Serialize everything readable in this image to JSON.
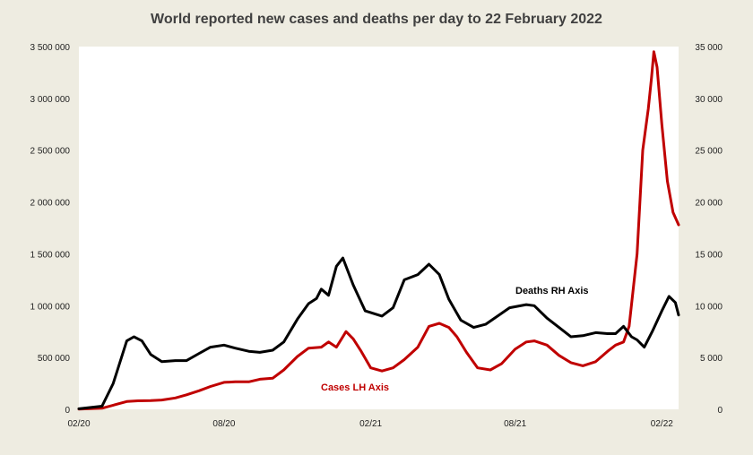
{
  "chart_data": {
    "type": "line",
    "title": "World reported new cases and deaths per day to 22 February 2022",
    "x_ticks": [
      "02/20",
      "08/20",
      "02/21",
      "08/21",
      "02/22"
    ],
    "y_left": {
      "range": [
        0,
        3500000
      ],
      "ticks": [
        "0",
        "500 000",
        "1 000 000",
        "1 500 000",
        "2 000 000",
        "2 500 000",
        "3 000 000",
        "3 500 000"
      ]
    },
    "y_right": {
      "range": [
        0,
        35000
      ],
      "ticks": [
        "0",
        "5 000",
        "10 000",
        "15 000",
        "20 000",
        "25 000",
        "30 000",
        "35 000"
      ]
    },
    "grid": false,
    "legend": "none",
    "annotations": {
      "deaths": "Deaths RH Axis",
      "cases": "Cases LH Axis"
    },
    "colors": {
      "cases": "#c00000",
      "deaths": "#000000",
      "plot_bg": "#ffffff",
      "page_bg": "#eeece1"
    },
    "series": [
      {
        "key": "cases",
        "axis": "left",
        "x": [
          "2020-02-01",
          "2020-03-01",
          "2020-03-15",
          "2020-04-01",
          "2020-04-15",
          "2020-05-01",
          "2020-05-15",
          "2020-06-01",
          "2020-06-15",
          "2020-07-01",
          "2020-07-15",
          "2020-08-01",
          "2020-08-15",
          "2020-09-01",
          "2020-09-15",
          "2020-10-01",
          "2020-10-15",
          "2020-11-01",
          "2020-11-15",
          "2020-12-01",
          "2020-12-10",
          "2020-12-20",
          "2021-01-01",
          "2021-01-10",
          "2021-01-20",
          "2021-02-01",
          "2021-02-15",
          "2021-03-01",
          "2021-03-15",
          "2021-04-01",
          "2021-04-15",
          "2021-04-28",
          "2021-05-10",
          "2021-05-20",
          "2021-06-01",
          "2021-06-15",
          "2021-07-01",
          "2021-07-15",
          "2021-08-01",
          "2021-08-15",
          "2021-08-25",
          "2021-09-10",
          "2021-09-25",
          "2021-10-10",
          "2021-10-25",
          "2021-11-10",
          "2021-11-25",
          "2021-12-05",
          "2021-12-15",
          "2021-12-22",
          "2022-01-01",
          "2022-01-08",
          "2022-01-15",
          "2022-01-19",
          "2022-01-22",
          "2022-01-26",
          "2022-02-01",
          "2022-02-08",
          "2022-02-15",
          "2022-02-22"
        ],
        "y": [
          3000,
          10000,
          40000,
          75000,
          82000,
          85000,
          90000,
          110000,
          140000,
          180000,
          220000,
          260000,
          265000,
          265000,
          290000,
          300000,
          380000,
          510000,
          590000,
          600000,
          650000,
          600000,
          750000,
          680000,
          560000,
          400000,
          370000,
          400000,
          480000,
          600000,
          800000,
          830000,
          790000,
          700000,
          550000,
          400000,
          380000,
          440000,
          580000,
          650000,
          660000,
          620000,
          520000,
          450000,
          420000,
          460000,
          560000,
          620000,
          650000,
          800000,
          1500000,
          2500000,
          2900000,
          3200000,
          3450000,
          3300000,
          2750000,
          2200000,
          1900000,
          1780000
        ]
      },
      {
        "key": "deaths",
        "axis": "right",
        "x": [
          "2020-02-01",
          "2020-03-01",
          "2020-03-15",
          "2020-04-01",
          "2020-04-10",
          "2020-04-20",
          "2020-05-01",
          "2020-05-15",
          "2020-06-01",
          "2020-06-15",
          "2020-07-01",
          "2020-07-15",
          "2020-08-01",
          "2020-08-15",
          "2020-09-01",
          "2020-09-15",
          "2020-10-01",
          "2020-10-15",
          "2020-11-01",
          "2020-11-15",
          "2020-11-25",
          "2020-12-01",
          "2020-12-10",
          "2020-12-20",
          "2020-12-28",
          "2021-01-10",
          "2021-01-25",
          "2021-02-15",
          "2021-03-01",
          "2021-03-15",
          "2021-04-01",
          "2021-04-15",
          "2021-04-28",
          "2021-05-10",
          "2021-05-25",
          "2021-06-10",
          "2021-06-25",
          "2021-07-10",
          "2021-07-25",
          "2021-08-15",
          "2021-08-25",
          "2021-09-10",
          "2021-09-25",
          "2021-10-10",
          "2021-10-25",
          "2021-11-10",
          "2021-11-25",
          "2021-12-05",
          "2021-12-15",
          "2021-12-25",
          "2022-01-01",
          "2022-01-10",
          "2022-01-20",
          "2022-02-01",
          "2022-02-10",
          "2022-02-18",
          "2022-02-22"
        ],
        "y": [
          50,
          300,
          2500,
          6600,
          7000,
          6600,
          5300,
          4600,
          4700,
          4700,
          5400,
          6000,
          6200,
          5900,
          5600,
          5500,
          5700,
          6500,
          8700,
          10200,
          10700,
          11600,
          11000,
          13800,
          14600,
          12000,
          9500,
          9000,
          9800,
          12500,
          13000,
          14000,
          13000,
          10600,
          8600,
          7900,
          8200,
          9000,
          9800,
          10100,
          10000,
          8800,
          7900,
          7000,
          7100,
          7400,
          7300,
          7300,
          8000,
          7000,
          6700,
          6000,
          7500,
          9500,
          10900,
          10300,
          9100
        ]
      }
    ]
  }
}
